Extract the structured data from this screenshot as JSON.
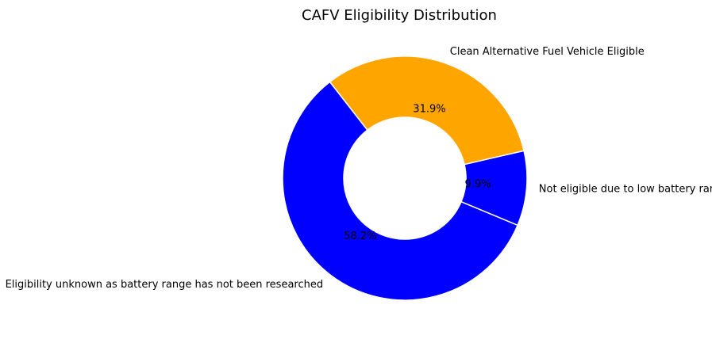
{
  "chart_data": {
    "type": "pie",
    "donut": true,
    "title": "CAFV Eligibility Distribution",
    "slices": [
      {
        "label": "Clean Alternative Fuel Vehicle Eligible",
        "value": 31.9,
        "pct_label": "31.9%",
        "color": "#FFA500"
      },
      {
        "label": "Eligibility unknown as battery range has not been researched",
        "value": 58.2,
        "pct_label": "58.2%",
        "color": "#0000FF"
      },
      {
        "label": "Not eligible due to low battery range",
        "value": 9.9,
        "pct_label": "9.9%",
        "color": "#0000FF"
      }
    ]
  }
}
